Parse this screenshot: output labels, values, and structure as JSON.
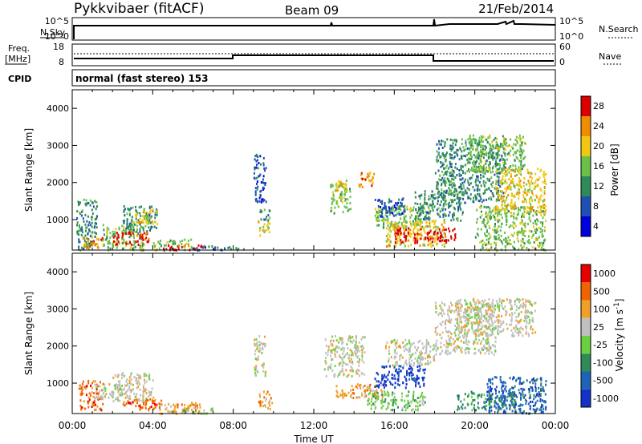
{
  "header": {
    "station": "Pykkvibaer (fitACF)",
    "beam": "Beam 09",
    "date": "21/Feb/2014"
  },
  "top_panels": {
    "nsky_label": "N.Sky",
    "nsky_ticks": [
      "10^5",
      "10^0"
    ],
    "nsearch_label": "N.Search",
    "freq_label_1": "Freq.",
    "freq_label_2": "[MHz]",
    "freq_ticks": [
      "18",
      "8"
    ],
    "nave_ticks": [
      "60",
      "0"
    ],
    "nave_label": "Nave",
    "cpid_label": "CPID",
    "cpid_text": "normal (fast stereo) 153"
  },
  "chart_data": [
    {
      "type": "heatmap",
      "title": "Power",
      "ylabel": "Slant Range [km]",
      "xlabel": "Time UT",
      "xlim": [
        "00:00",
        "24:00"
      ],
      "x_ticks": [
        "00:00",
        "04:00",
        "08:00",
        "12:00",
        "16:00",
        "20:00",
        "00:00"
      ],
      "ylim": [
        180,
        4500
      ],
      "y_ticks": [
        "1000",
        "2000",
        "3000",
        "4000"
      ],
      "colorbar": {
        "label": "Power [dB]",
        "ticks": [
          "4",
          "8",
          "12",
          "16",
          "20",
          "24",
          "28"
        ],
        "range": [
          0,
          30
        ],
        "colors": [
          "#0000dc",
          "#1e50b4",
          "#2e8b57",
          "#6abf4b",
          "#f0c814",
          "#f08c00",
          "#dc0000"
        ]
      }
    },
    {
      "type": "heatmap",
      "title": "Velocity",
      "ylabel": "Slant Range [km]",
      "xlabel": "Time UT",
      "xlim": [
        "00:00",
        "24:00"
      ],
      "x_ticks": [
        "00:00",
        "04:00",
        "08:00",
        "12:00",
        "16:00",
        "20:00",
        "00:00"
      ],
      "ylim": [
        180,
        4500
      ],
      "y_ticks": [
        "1000",
        "2000",
        "3000",
        "4000"
      ],
      "colorbar": {
        "label": "Velocity [m s-1]",
        "ticks": [
          "1000",
          "500",
          "100",
          "25",
          "-25",
          "-100",
          "-500",
          "-1000"
        ],
        "colors": [
          "#1432c8",
          "#1e64b4",
          "#2e8b57",
          "#6ad040",
          "#c0c0c0",
          "#f0a028",
          "#f06400",
          "#e60000"
        ]
      },
      "x_axis_title": "Time UT"
    }
  ]
}
